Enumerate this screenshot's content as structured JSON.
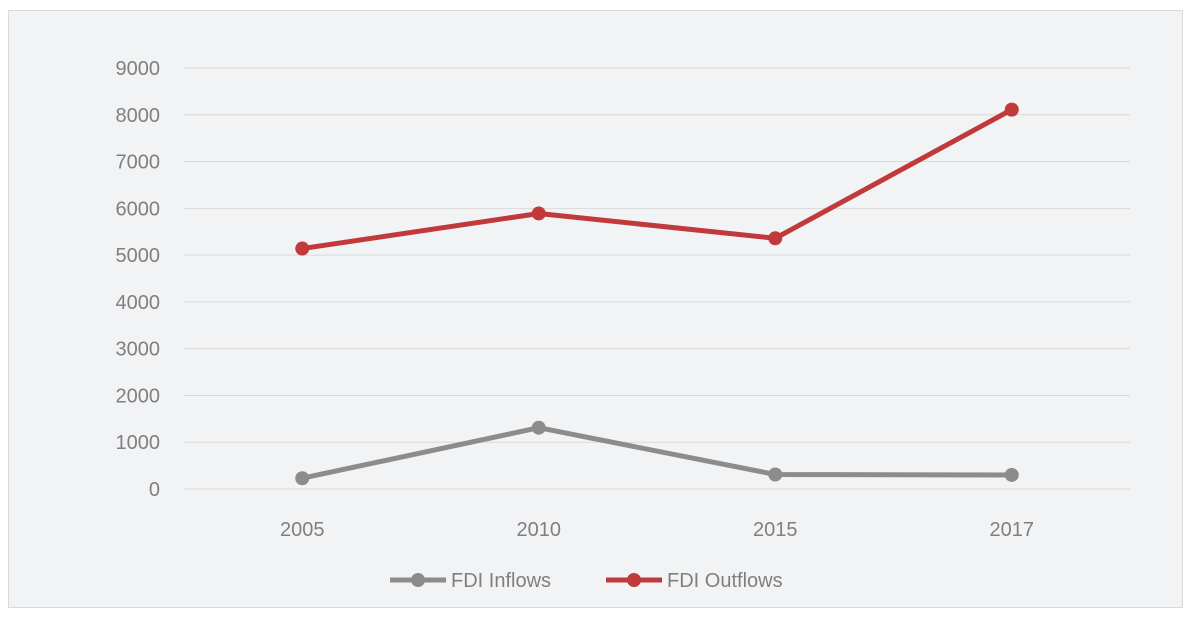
{
  "chart_data": {
    "type": "line",
    "title": "",
    "xlabel": "",
    "ylabel": "",
    "categories": [
      "2005",
      "2010",
      "2015",
      "2017"
    ],
    "ylim": [
      0,
      9000
    ],
    "yticks": [
      0,
      1000,
      2000,
      3000,
      4000,
      5000,
      6000,
      7000,
      8000,
      9000
    ],
    "grid": "horizontal",
    "legend": "bottom",
    "series": [
      {
        "name": "FDI Inflows",
        "values": [
          230,
          1310,
          310,
          300
        ],
        "color": "#8c8c8c"
      },
      {
        "name": "FDI Outflows",
        "values": [
          5140,
          5890,
          5360,
          8110
        ],
        "color": "#c0393b"
      }
    ]
  },
  "colors": {
    "background": "#f2f3f5",
    "gridline": "#d9d9d9",
    "axis_text": "#7f7f7f"
  }
}
